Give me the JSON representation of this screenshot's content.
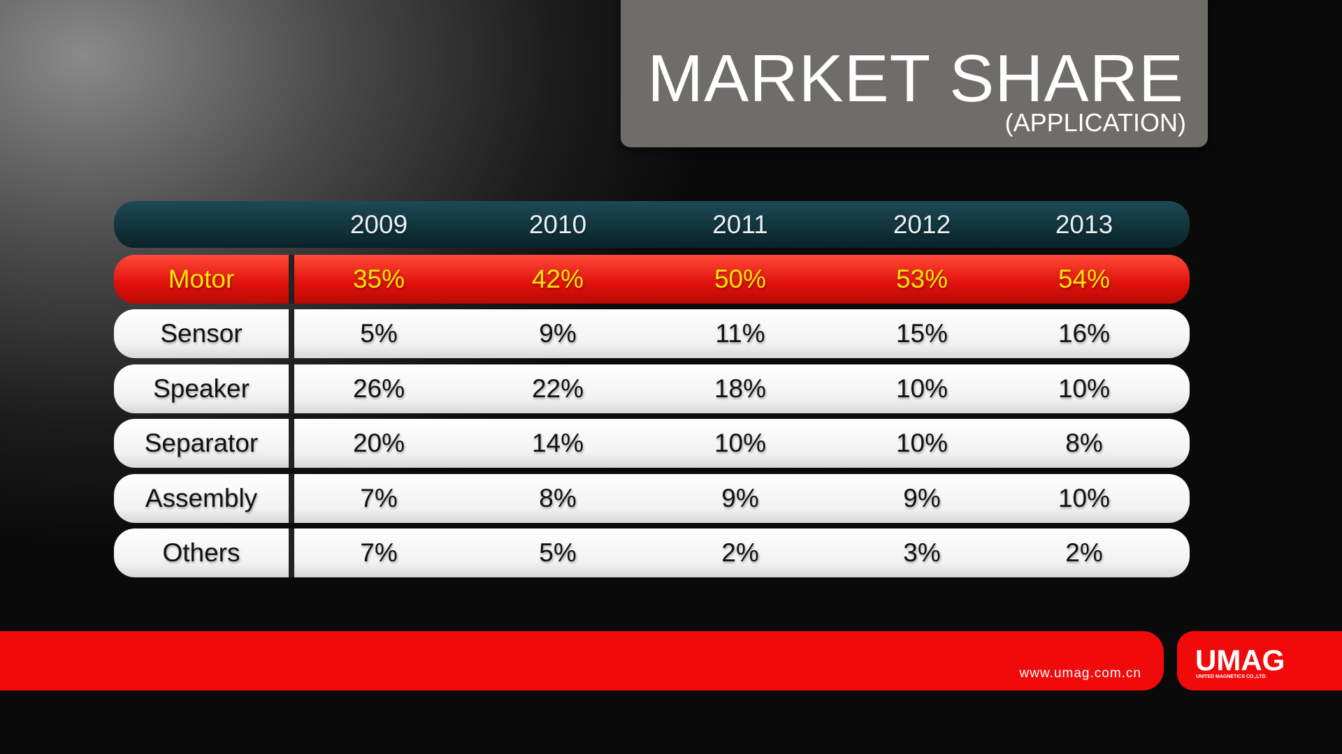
{
  "header": {
    "title": "MARKET SHARE",
    "subtitle": "(APPLICATION)"
  },
  "table": {
    "columns": [
      "2009",
      "2010",
      "2011",
      "2012",
      "2013"
    ],
    "rows": [
      [
        "Motor",
        "35%",
        "42%",
        "50%",
        "53%",
        "54%"
      ],
      [
        "Sensor",
        "5%",
        "9%",
        "11%",
        "15%",
        "16%"
      ],
      [
        "Speaker",
        "26%",
        "22%",
        "18%",
        "10%",
        "10%"
      ],
      [
        "Separator",
        "20%",
        "14%",
        "10%",
        "10%",
        "8%"
      ],
      [
        "Assembly",
        "7%",
        "8%",
        "9%",
        "9%",
        "10%"
      ],
      [
        "Others",
        "7%",
        "5%",
        "2%",
        "3%",
        "2%"
      ]
    ]
  },
  "footer": {
    "url": "www.umag.com.cn",
    "logo": "UMAG",
    "company": "UNITED MAGNETICS CO.,LTD."
  }
}
